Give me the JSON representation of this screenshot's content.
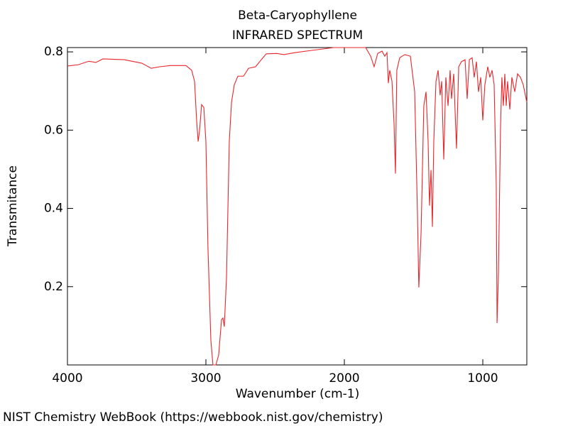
{
  "chart_data": {
    "type": "line",
    "title": "Beta-Caryophyllene",
    "subtitle": "INFRARED SPECTRUM",
    "x_label": "Wavenumber (cm-1)",
    "y_label": "Transmitance",
    "footer": "NIST Chemistry WebBook (https://webbook.nist.gov/chemistry)",
    "color": "#e8262b",
    "xlim": [
      4000,
      682
    ],
    "ylim": [
      0,
      0.811
    ],
    "xticks": [
      4000,
      3000,
      2000,
      1000
    ],
    "yticks": [
      0.2,
      0.4,
      0.6,
      0.8
    ],
    "x": [
      4000,
      3923,
      3846,
      3795,
      3744,
      3590,
      3462,
      3395,
      3333,
      3256,
      3144,
      3103,
      3082,
      3067,
      3056,
      3046,
      3031,
      3015,
      3000,
      2985,
      2964,
      2949,
      2928,
      2908,
      2887,
      2877,
      2867,
      2851,
      2831,
      2815,
      2795,
      2769,
      2728,
      2692,
      2641,
      2600,
      2564,
      2487,
      2436,
      2359,
      2231,
      2077,
      1846,
      1810,
      1785,
      1759,
      1728,
      1708,
      1692,
      1682,
      1672,
      1656,
      1641,
      1631,
      1621,
      1600,
      1564,
      1523,
      1492,
      1472,
      1462,
      1446,
      1426,
      1410,
      1395,
      1385,
      1374,
      1364,
      1354,
      1338,
      1323,
      1308,
      1297,
      1282,
      1267,
      1251,
      1236,
      1226,
      1210,
      1190,
      1174,
      1154,
      1128,
      1113,
      1097,
      1077,
      1062,
      1046,
      1031,
      1015,
      1000,
      985,
      964,
      949,
      933,
      918,
      903,
      897,
      887,
      872,
      862,
      851,
      841,
      831,
      821,
      805,
      790,
      769,
      749,
      728,
      708,
      682
    ],
    "values": [
      0.764,
      0.767,
      0.776,
      0.773,
      0.782,
      0.78,
      0.771,
      0.758,
      0.762,
      0.765,
      0.765,
      0.753,
      0.725,
      0.625,
      0.571,
      0.598,
      0.665,
      0.658,
      0.571,
      0.298,
      0.062,
      0.0,
      0.0,
      0.025,
      0.116,
      0.12,
      0.098,
      0.225,
      0.571,
      0.671,
      0.716,
      0.738,
      0.738,
      0.758,
      0.762,
      0.78,
      0.795,
      0.796,
      0.793,
      0.798,
      0.804,
      0.811,
      0.811,
      0.789,
      0.762,
      0.796,
      0.802,
      0.789,
      0.798,
      0.72,
      0.753,
      0.725,
      0.616,
      0.489,
      0.753,
      0.785,
      0.793,
      0.789,
      0.698,
      0.389,
      0.198,
      0.335,
      0.662,
      0.698,
      0.571,
      0.407,
      0.498,
      0.353,
      0.571,
      0.725,
      0.753,
      0.689,
      0.725,
      0.525,
      0.735,
      0.662,
      0.753,
      0.68,
      0.744,
      0.553,
      0.762,
      0.775,
      0.78,
      0.68,
      0.78,
      0.785,
      0.735,
      0.775,
      0.698,
      0.735,
      0.625,
      0.716,
      0.762,
      0.735,
      0.753,
      0.716,
      0.462,
      0.107,
      0.235,
      0.607,
      0.735,
      0.662,
      0.744,
      0.662,
      0.725,
      0.653,
      0.735,
      0.698,
      0.744,
      0.735,
      0.716,
      0.671
    ]
  }
}
